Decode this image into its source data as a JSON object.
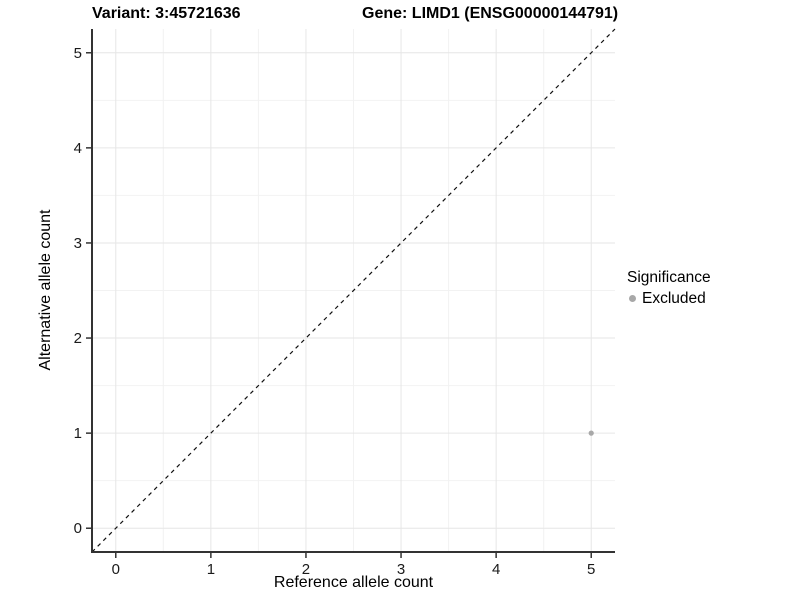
{
  "chart_data": {
    "type": "scatter",
    "title_left": "Variant: 3:45721636",
    "title_right": "Gene: LIMD1 (ENSG00000144791)",
    "xlabel": "Reference allele count",
    "ylabel": "Alternative allele count",
    "xlim": [
      -0.25,
      5.25
    ],
    "ylim": [
      -0.25,
      5.25
    ],
    "xticks": [
      0,
      1,
      2,
      3,
      4,
      5
    ],
    "yticks": [
      0,
      1,
      2,
      3,
      4,
      5
    ],
    "minor_ticks": [
      0.5,
      1.5,
      2.5,
      3.5,
      4.5
    ],
    "grid": "major and minor gridlines, white background",
    "reference_line": {
      "type": "identity y=x",
      "x1": -0.25,
      "y1": -0.25,
      "x2": 5.25,
      "y2": 5.25,
      "style": "dashed",
      "color": "#111111"
    },
    "series": [
      {
        "name": "Excluded",
        "color": "#a8a8a8",
        "points": [
          {
            "x": 5,
            "y": 1
          }
        ]
      }
    ],
    "legend": {
      "position": "right",
      "title": "Significance",
      "items": [
        {
          "label": "Excluded",
          "color": "#a8a8a8"
        }
      ]
    }
  },
  "style": {
    "background": "#ffffff",
    "grid_major_color": "#e6e6e6",
    "grid_minor_color": "#f2f2f2",
    "axis_color": "#333333",
    "text_color": "#1a1a1a",
    "point_color": "#a8a8a8",
    "point_radius": 2.6
  }
}
